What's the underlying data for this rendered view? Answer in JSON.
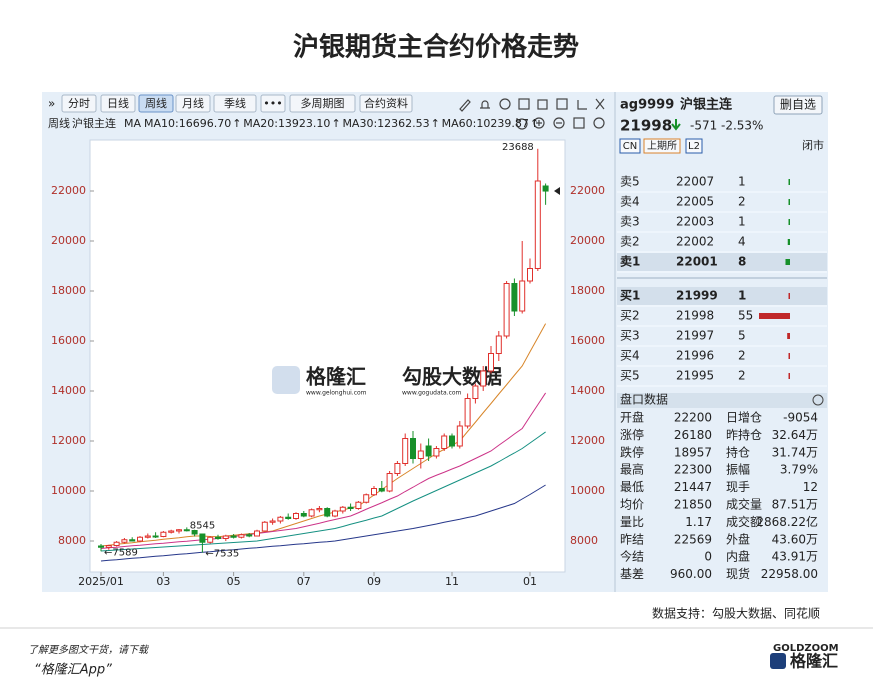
{
  "title": "沪银期货主合约价格走势",
  "toolbar": {
    "tabs": [
      "分时",
      "日线",
      "周线",
      "月线",
      "季线",
      "•••",
      "多周期图",
      "合约资料"
    ],
    "selected": "周线"
  },
  "ma_header": {
    "period": "周线",
    "symbol": "沪银主连",
    "prefix": "MA"
  },
  "chart_data": {
    "type": "candlestick",
    "categories": [
      "2025/01",
      null,
      null,
      null,
      null,
      null,
      null,
      null,
      "03",
      null,
      null,
      null,
      null,
      null,
      null,
      null,
      null,
      "05",
      null,
      null,
      null,
      null,
      null,
      null,
      null,
      null,
      "07",
      null,
      null,
      null,
      null,
      null,
      null,
      null,
      null,
      "09",
      null,
      null,
      null,
      null,
      null,
      null,
      null,
      null,
      null,
      "11",
      null,
      null,
      null,
      null,
      null,
      null,
      null,
      null,
      null,
      "01",
      null,
      null
    ],
    "open": [
      7800,
      7750,
      7820,
      7950,
      8050,
      8000,
      8150,
      8200,
      8180,
      8350,
      8400,
      8450,
      8420,
      8280,
      7950,
      8150,
      8100,
      8200,
      8150,
      8250,
      8200,
      8400,
      8750,
      8800,
      8950,
      8900,
      9100,
      9000,
      9250,
      9300,
      9000,
      9200,
      9350,
      9300,
      9550,
      9850,
      10100,
      10000,
      10700,
      11100,
      12100,
      11300,
      11800,
      11400,
      11700,
      12200,
      11800,
      12600,
      13700,
      14200,
      14800,
      15500,
      16200,
      18300,
      17200,
      18400,
      18900,
      22200
    ],
    "high": [
      7880,
      7850,
      8000,
      8120,
      8150,
      8200,
      8300,
      8350,
      8400,
      8450,
      8480,
      8545,
      8450,
      8300,
      8200,
      8250,
      8250,
      8280,
      8300,
      8320,
      8450,
      8800,
      8900,
      9000,
      9100,
      9150,
      9200,
      9300,
      9400,
      9350,
      9250,
      9400,
      9500,
      9600,
      9900,
      10200,
      10400,
      10800,
      11200,
      12300,
      12400,
      11900,
      12100,
      11800,
      12300,
      12300,
      12800,
      13900,
      14300,
      15000,
      15800,
      16400,
      18400,
      18500,
      20000,
      19300,
      23688,
      22300
    ],
    "low": [
      7589,
      7650,
      7780,
      7900,
      7980,
      7950,
      8100,
      8120,
      8150,
      8300,
      8300,
      8380,
      8180,
      7535,
      7900,
      8050,
      8000,
      8100,
      8100,
      8150,
      8180,
      8380,
      8650,
      8700,
      8850,
      8850,
      8950,
      8950,
      9150,
      8950,
      8950,
      9100,
      9200,
      9250,
      9500,
      9800,
      9950,
      9950,
      10600,
      11000,
      11100,
      10900,
      11200,
      11300,
      11600,
      11700,
      11700,
      12500,
      13500,
      14000,
      14700,
      15200,
      16100,
      17000,
      17100,
      18300,
      18800,
      21447
    ],
    "close": [
      7750,
      7820,
      7950,
      8050,
      8000,
      8150,
      8200,
      8180,
      8350,
      8400,
      8450,
      8420,
      8280,
      7950,
      8150,
      8100,
      8200,
      8150,
      8250,
      8200,
      8400,
      8750,
      8800,
      8950,
      8900,
      9100,
      9000,
      9250,
      9300,
      9000,
      9200,
      9350,
      9300,
      9550,
      9850,
      10100,
      10000,
      10700,
      11100,
      12100,
      11300,
      11600,
      11400,
      11700,
      12200,
      11800,
      12600,
      13700,
      14200,
      14800,
      15500,
      16200,
      18300,
      17200,
      18400,
      18900,
      22400,
      21998
    ],
    "up_color": "#e0302c",
    "down_color": "#17902a",
    "ma": [
      {
        "label": "MA10:16696.70",
        "trend": "↑",
        "color": "#d8862a",
        "values": [
          7800,
          7830,
          7870,
          7900,
          7930,
          7970,
          8000,
          8030,
          8070,
          8100,
          8130,
          8170,
          8200,
          8200,
          8180,
          8170,
          8200,
          8230,
          8260,
          8290,
          8320,
          8360,
          8400,
          8500,
          8600,
          8700,
          8800,
          8900,
          9000,
          9080,
          9160,
          9240,
          9320,
          9400,
          9620,
          9840,
          10060,
          10280,
          10500,
          10700,
          10900,
          11100,
          11300,
          11500,
          11670,
          11830,
          12000,
          12380,
          12750,
          13130,
          13500,
          13880,
          14250,
          14630,
          15000,
          15570,
          16130,
          16697
        ]
      },
      {
        "label": "MA20:13923.10",
        "trend": "↑",
        "color": "#cc3388",
        "values": [
          7700,
          7730,
          7750,
          7780,
          7810,
          7830,
          7860,
          7890,
          7910,
          7940,
          7970,
          7990,
          8020,
          8050,
          8070,
          8100,
          8140,
          8180,
          8220,
          8260,
          8300,
          8340,
          8380,
          8420,
          8460,
          8500,
          8570,
          8640,
          8710,
          8790,
          8860,
          8930,
          9000,
          9130,
          9270,
          9400,
          9530,
          9670,
          9800,
          9980,
          10150,
          10330,
          10500,
          10630,
          10750,
          10880,
          11000,
          11150,
          11300,
          11450,
          11600,
          11830,
          12050,
          12280,
          12500,
          12980,
          13450,
          13923
        ]
      },
      {
        "label": "MA30:12362.53",
        "trend": "↑",
        "color": "#159082",
        "values": [
          7600,
          7620,
          7640,
          7660,
          7680,
          7700,
          7720,
          7740,
          7760,
          7780,
          7800,
          7820,
          7840,
          7860,
          7880,
          7900,
          7920,
          7940,
          7960,
          7980,
          8000,
          8050,
          8100,
          8150,
          8200,
          8250,
          8300,
          8350,
          8400,
          8450,
          8500,
          8580,
          8670,
          8750,
          8830,
          8920,
          9000,
          9150,
          9300,
          9450,
          9600,
          9740,
          9880,
          10020,
          10160,
          10300,
          10440,
          10580,
          10720,
          10860,
          11000,
          11170,
          11350,
          11520,
          11700,
          11920,
          12140,
          12363
        ]
      },
      {
        "label": "MA60:10239.87",
        "trend": "↑",
        "color": "#26378a",
        "values": [
          7200,
          7230,
          7250,
          7280,
          7310,
          7330,
          7360,
          7390,
          7410,
          7440,
          7470,
          7490,
          7520,
          7550,
          7570,
          7600,
          7630,
          7650,
          7680,
          7710,
          7730,
          7760,
          7790,
          7810,
          7840,
          7870,
          7890,
          7920,
          7950,
          7970,
          8000,
          8050,
          8100,
          8150,
          8200,
          8250,
          8300,
          8350,
          8400,
          8450,
          8500,
          8560,
          8620,
          8680,
          8750,
          8810,
          8870,
          8940,
          9000,
          9100,
          9200,
          9300,
          9400,
          9500,
          9680,
          9860,
          10050,
          10240
        ]
      }
    ],
    "ylim": [
      6760,
      24040
    ],
    "yticks": [
      8000,
      10000,
      12000,
      14000,
      16000,
      18000,
      20000,
      22000
    ],
    "annotations": [
      {
        "value": 23688,
        "label": "23688"
      },
      {
        "value": 8545,
        "label": "8545"
      },
      {
        "value": 7589,
        "label": "←7589"
      },
      {
        "value": 7535,
        "label": "←7535"
      }
    ]
  },
  "watermark": {
    "brand": "格隆汇",
    "brand_url": "www.gelonghui.com",
    "data": "勾股大数据",
    "data_url": "www.gogudata.com"
  },
  "quote": {
    "code": "ag9999",
    "name": "沪银主连",
    "button": "删自选",
    "price": 21998,
    "change": -571,
    "change_pct": "-2.53%",
    "tags": [
      "CN",
      "上期所",
      "L2"
    ],
    "status": "闭市"
  },
  "order_book": {
    "asks": [
      {
        "label": "卖5",
        "price": 22007,
        "volume": 1
      },
      {
        "label": "卖4",
        "price": 22005,
        "volume": 2
      },
      {
        "label": "卖3",
        "price": 22003,
        "volume": 1
      },
      {
        "label": "卖2",
        "price": 22002,
        "volume": 4
      },
      {
        "label": "卖1",
        "price": 22001,
        "volume": 8
      }
    ],
    "bids": [
      {
        "label": "买1",
        "price": 21999,
        "volume": 1
      },
      {
        "label": "买2",
        "price": 21998,
        "volume": 55
      },
      {
        "label": "买3",
        "price": 21997,
        "volume": 5
      },
      {
        "label": "买4",
        "price": 21996,
        "volume": 2
      },
      {
        "label": "买5",
        "price": 21995,
        "volume": 2
      }
    ]
  },
  "market_panel": {
    "title": "盘口数据",
    "rows": [
      [
        "开盘",
        "22200",
        "日增仓",
        "-9054"
      ],
      [
        "涨停",
        "26180",
        "昨持仓",
        "32.64万"
      ],
      [
        "跌停",
        "18957",
        "持仓",
        "31.74万"
      ],
      [
        "最高",
        "22300",
        "振幅",
        "3.79%"
      ],
      [
        "最低",
        "21447",
        "现手",
        "12"
      ],
      [
        "均价",
        "21850",
        "成交量",
        "87.51万"
      ],
      [
        "量比",
        "1.17",
        "成交额",
        "2868.22亿"
      ],
      [
        "昨结",
        "22569",
        "外盘",
        "43.60万"
      ],
      [
        "今结",
        "0",
        "内盘",
        "43.91万"
      ],
      [
        "基差",
        "960.00",
        "现货",
        "22958.00"
      ]
    ]
  },
  "footer": {
    "source": "数据支持：勾股大数据、同花顺",
    "promo": "了解更多图文干货，请下载",
    "app": "“格隆汇App”",
    "brand_en": "GOLDZOOM",
    "brand": "格隆汇"
  }
}
